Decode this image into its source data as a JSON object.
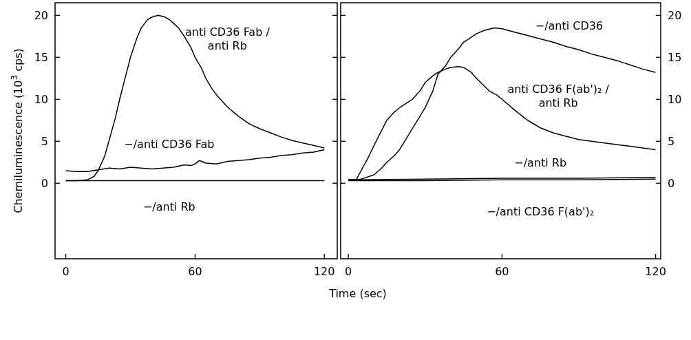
{
  "chart_data": [
    {
      "type": "line",
      "xlabel": "Time (sec)",
      "ylabel": "Chemiluminescence (10$^{3}$ cps)",
      "xlim": [
        -5,
        126
      ],
      "ylim": [
        -9,
        21.5
      ],
      "xticks": [
        0,
        60,
        120
      ],
      "yticks": [
        0,
        5,
        10,
        15,
        20
      ],
      "tick_labels": "xy",
      "grid": false,
      "line_style": "solid",
      "series": [
        {
          "name": "anti CD36 Fab / anti Rb",
          "color": "#000000",
          "x": [
            0,
            5,
            10,
            13,
            15,
            18,
            20,
            23,
            25,
            28,
            30,
            33,
            35,
            38,
            40,
            43,
            46,
            48,
            52,
            55,
            58,
            60,
            63,
            65,
            68,
            70,
            75,
            80,
            85,
            90,
            95,
            100,
            105,
            110,
            115,
            120
          ],
          "values": [
            0.3,
            0.3,
            0.4,
            0.8,
            1.5,
            3.2,
            5,
            7.8,
            10,
            13,
            15,
            17.3,
            18.5,
            19.5,
            19.8,
            20,
            19.8,
            19.5,
            18.6,
            17.5,
            16.2,
            15,
            13.7,
            12.5,
            11.2,
            10.5,
            9.1,
            8,
            7.1,
            6.5,
            6,
            5.5,
            5.1,
            4.8,
            4.5,
            4.2
          ]
        },
        {
          "name": "−/anti CD36 Fab",
          "color": "#000000",
          "x": [
            0,
            5,
            10,
            15,
            20,
            25,
            30,
            35,
            40,
            45,
            50,
            55,
            58,
            60,
            62,
            65,
            70,
            75,
            80,
            85,
            90,
            95,
            100,
            105,
            110,
            115,
            120
          ],
          "values": [
            1.5,
            1.4,
            1.4,
            1.6,
            1.8,
            1.7,
            1.9,
            1.8,
            1.7,
            1.8,
            1.9,
            2.2,
            2.1,
            2.3,
            2.7,
            2.4,
            2.3,
            2.6,
            2.7,
            2.8,
            3,
            3.1,
            3.3,
            3.4,
            3.6,
            3.7,
            4
          ]
        },
        {
          "name": "−/anti Rb",
          "color": "#000000",
          "x": [
            0,
            30,
            60,
            90,
            120
          ],
          "values": [
            0.3,
            0.3,
            0.3,
            0.3,
            0.3
          ]
        }
      ]
    },
    {
      "type": "line",
      "xlim": [
        -3,
        122
      ],
      "ylim": [
        -9,
        21.5
      ],
      "xticks": [
        0,
        60,
        120
      ],
      "yticks": [
        0,
        5,
        10,
        15,
        20
      ],
      "tick_labels": "xy",
      "grid": false,
      "line_style": "solid",
      "series": [
        {
          "name": "−/anti CD36",
          "color": "#000000",
          "x": [
            0,
            3,
            5,
            8,
            10,
            13,
            15,
            18,
            20,
            23,
            25,
            28,
            30,
            33,
            35,
            38,
            40,
            43,
            45,
            48,
            50,
            53,
            57,
            60,
            65,
            70,
            75,
            80,
            85,
            90,
            95,
            100,
            105,
            110,
            115,
            120
          ],
          "values": [
            0.4,
            0.4,
            0.5,
            0.8,
            1,
            1.8,
            2.5,
            3.3,
            4,
            5.5,
            6.5,
            8,
            9,
            11,
            13,
            14,
            15,
            16,
            16.8,
            17.4,
            17.8,
            18.2,
            18.5,
            18.4,
            18,
            17.6,
            17.2,
            16.8,
            16.3,
            15.9,
            15.4,
            15,
            14.6,
            14.1,
            13.6,
            13.2
          ]
        },
        {
          "name": "anti CD36 F(ab')₂ / anti Rb",
          "color": "#000000",
          "x": [
            0,
            3,
            5,
            8,
            10,
            13,
            15,
            18,
            20,
            23,
            25,
            28,
            30,
            33,
            35,
            38,
            40,
            43,
            45,
            48,
            50,
            53,
            55,
            58,
            60,
            65,
            70,
            75,
            80,
            85,
            90,
            95,
            100,
            110,
            120
          ],
          "values": [
            0.4,
            0.4,
            1.5,
            3.2,
            4.5,
            6.3,
            7.5,
            8.5,
            9,
            9.6,
            10,
            11,
            12,
            12.8,
            13.2,
            13.6,
            13.8,
            13.9,
            13.8,
            13.2,
            12.5,
            11.6,
            11,
            10.5,
            10,
            8.7,
            7.5,
            6.6,
            6,
            5.6,
            5.2,
            5,
            4.8,
            4.4,
            4
          ]
        },
        {
          "name": "−/anti Rb",
          "color": "#000000",
          "x": [
            0,
            30,
            60,
            90,
            120
          ],
          "values": [
            0.4,
            0.5,
            0.6,
            0.6,
            0.7
          ]
        },
        {
          "name": "−/anti CD36 F(ab')₂",
          "color": "#000000",
          "x": [
            0,
            30,
            60,
            90,
            120
          ],
          "values": [
            0.3,
            0.3,
            0.4,
            0.4,
            0.5
          ]
        }
      ]
    }
  ]
}
